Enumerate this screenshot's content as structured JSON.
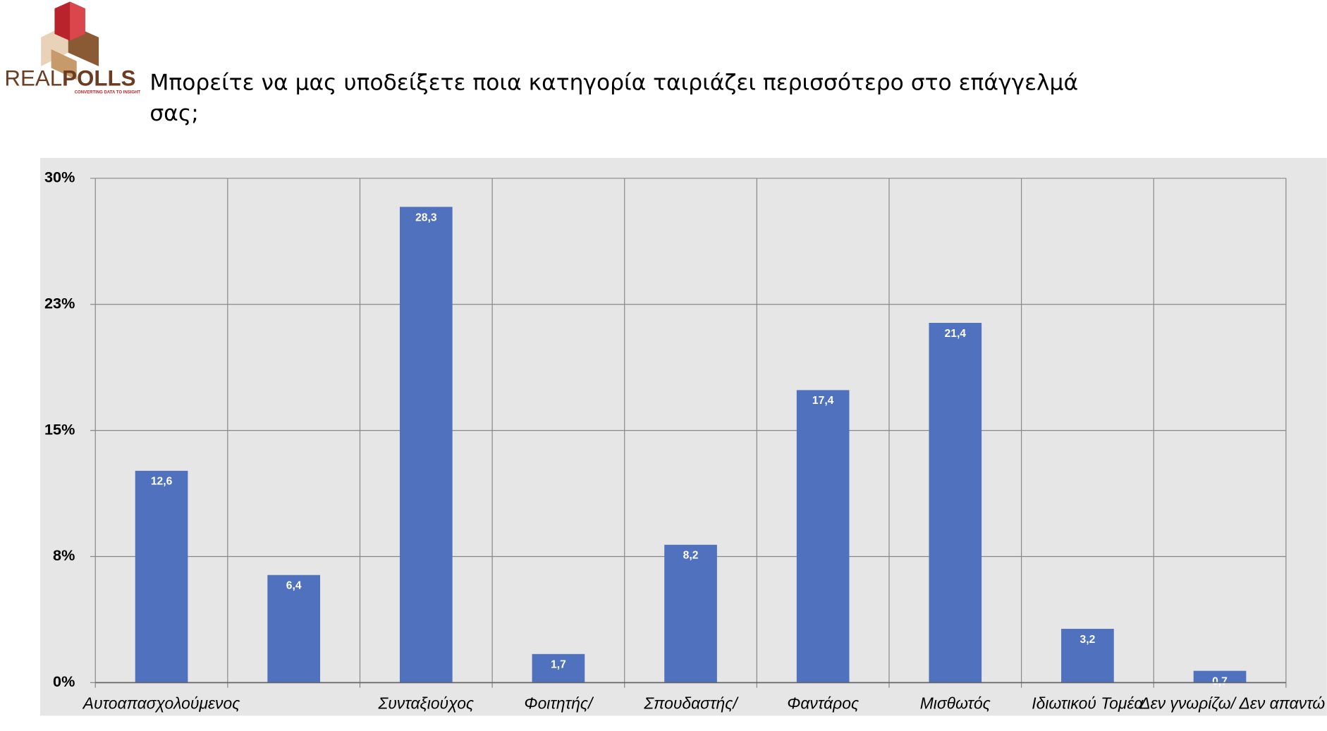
{
  "logo": {
    "brand_light": "REAL",
    "brand_bold": "POLLS",
    "tagline": "CONVERTING DATA TO INSIGHT"
  },
  "chart_data": {
    "type": "bar",
    "title": "Μπορείτε να μας υποδείξετε ποια κατηγορία ταιριάζει περισσότερο στο επάγγελμά σας;",
    "categories": [
      "Αυτοαπασχολούμενος",
      null,
      "Συνταξιούχος",
      "Φοιτητής/",
      "Σπουδαστής/",
      "Φαντάρος",
      "Μισθωτός",
      "Ιδιωτικού Τομέα",
      "Δεν γνωρίζω/ Δεν απαντώ"
    ],
    "values": [
      12.6,
      6.4,
      28.3,
      1.7,
      8.2,
      17.4,
      21.4,
      3.2,
      0.7
    ],
    "value_labels": [
      "12,6",
      "6,4",
      "28,3",
      "1,7",
      "8,2",
      "17,4",
      "21,4",
      "3,2",
      "0,7"
    ],
    "color": "#4f71be",
    "ylim": [
      0,
      30
    ],
    "yticks": [
      {
        "value": 0,
        "label": "0%"
      },
      {
        "value": 7.5,
        "label": "8%"
      },
      {
        "value": 15,
        "label": "15%"
      },
      {
        "value": 22.5,
        "label": "23%"
      },
      {
        "value": 30,
        "label": "30%"
      }
    ],
    "grid": true
  }
}
